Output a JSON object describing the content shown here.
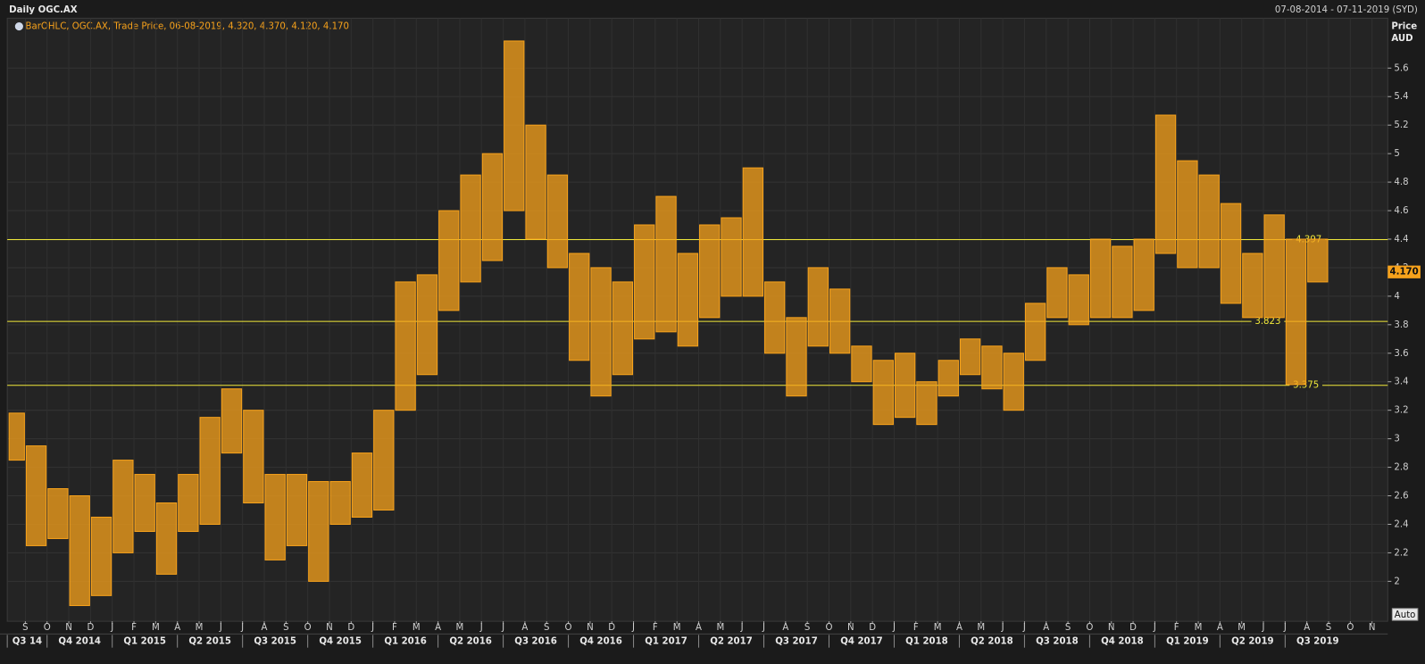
{
  "chart_data": {
    "type": "ohlc",
    "title": "Daily OGC.AX",
    "date_range": "07-08-2014 - 07-11-2019 (SYD)",
    "legend_text": "BarOHLC, OGC.AX, Trade Price, 06-08-2019, 4.320, 4.370, 4.120, 4.170",
    "y_label": "Price",
    "y_unit": "AUD",
    "auto_button": "Auto",
    "color": "#f7a21b",
    "hline_color": "#f2ea3a",
    "categories": [
      null,
      "S",
      "O",
      "N",
      "D",
      "J",
      "F",
      "M",
      "A",
      "M",
      "J",
      "J",
      "A",
      "S",
      "O",
      "N",
      "D",
      "J",
      "F",
      "M",
      "A",
      "M",
      "J",
      "J",
      "A",
      "S",
      "O",
      "N",
      "D",
      "J",
      "F",
      "M",
      "A",
      "M",
      "J",
      "J",
      "A",
      "S",
      "O",
      "N",
      "D",
      "J",
      "F",
      "M",
      "A",
      "M",
      "J",
      "J",
      "A",
      "S",
      "O",
      "N",
      "D",
      "J",
      "F",
      "M",
      "A",
      "M",
      "J",
      "J",
      "A",
      "S",
      "O",
      "N"
    ],
    "quarters": [
      "Q3 14",
      "Q4 2014",
      "Q1 2015",
      "Q2 2015",
      "Q3 2015",
      "Q4 2015",
      "Q1 2016",
      "Q2 2016",
      "Q3 2016",
      "Q4 2016",
      "Q1 2017",
      "Q2 2017",
      "Q3 2017",
      "Q4 2017",
      "Q1 2018",
      "Q2 2018",
      "Q3 2018",
      "Q4 2018",
      "Q1 2019",
      "Q2 2019",
      "Q3 2019"
    ],
    "low": [
      2.85,
      2.25,
      2.3,
      1.83,
      1.9,
      2.2,
      2.35,
      2.05,
      2.35,
      2.4,
      2.9,
      2.55,
      2.15,
      2.25,
      2.0,
      2.4,
      2.45,
      2.5,
      3.2,
      3.45,
      3.9,
      4.1,
      4.25,
      4.6,
      4.4,
      4.2,
      3.55,
      3.3,
      3.45,
      3.7,
      3.75,
      3.65,
      3.85,
      4.0,
      4.0,
      3.6,
      3.3,
      3.65,
      3.6,
      3.4,
      3.1,
      3.15,
      3.1,
      3.3,
      3.45,
      3.35,
      3.2,
      3.55,
      3.85,
      3.8,
      3.85,
      3.85,
      3.9,
      4.3,
      4.2,
      4.2,
      3.95,
      3.85,
      3.85,
      3.38,
      4.1,
      null,
      null,
      null
    ],
    "high": [
      3.18,
      2.95,
      2.65,
      2.6,
      2.45,
      2.85,
      2.75,
      2.55,
      2.75,
      3.15,
      3.35,
      3.2,
      2.75,
      2.75,
      2.7,
      2.7,
      2.9,
      3.2,
      4.1,
      4.15,
      4.6,
      4.85,
      5.0,
      5.79,
      5.2,
      4.85,
      4.3,
      4.2,
      4.1,
      4.5,
      4.7,
      4.3,
      4.5,
      4.55,
      4.9,
      4.1,
      3.85,
      4.2,
      4.05,
      3.65,
      3.55,
      3.6,
      3.4,
      3.55,
      3.7,
      3.65,
      3.6,
      3.95,
      4.2,
      4.15,
      4.4,
      4.35,
      4.4,
      5.27,
      4.95,
      4.85,
      4.65,
      4.3,
      4.57,
      4.4,
      4.4,
      null,
      null,
      null
    ],
    "hlines": [
      4.397,
      3.823,
      3.375
    ],
    "last_price": {
      "value": 4.17,
      "label": "4.170"
    },
    "ylim": [
      1.72,
      5.95
    ],
    "yticks": [
      2,
      2.2,
      2.4,
      2.6,
      2.8,
      3,
      3.2,
      3.4,
      3.6,
      3.8,
      4,
      4.2,
      4.4,
      4.6,
      4.8,
      5,
      5.2,
      5.4,
      5.6
    ],
    "grid": true
  }
}
